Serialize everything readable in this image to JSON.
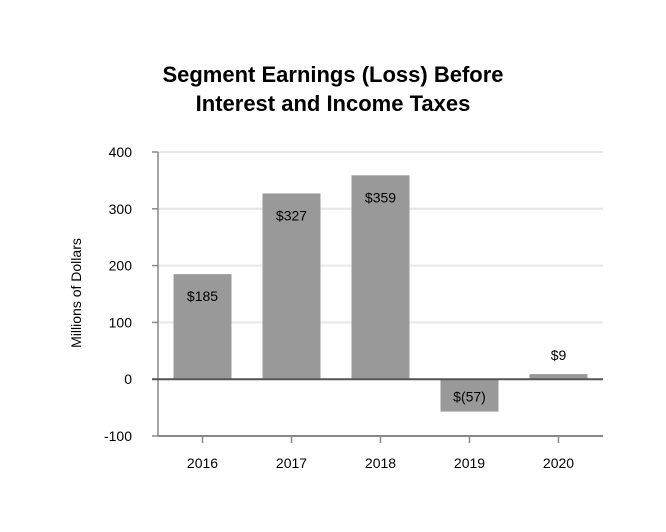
{
  "chart_data": {
    "type": "bar",
    "title_lines": [
      "Segment Earnings (Loss) Before",
      "Interest and Income Taxes"
    ],
    "ylabel": "Millions of Dollars",
    "xlabel": "",
    "categories": [
      "2016",
      "2017",
      "2018",
      "2019",
      "2020"
    ],
    "values": [
      185,
      327,
      359,
      -57,
      9
    ],
    "value_labels": [
      "$185",
      "$327",
      "$359",
      "$(57)",
      "$9"
    ],
    "ylim": [
      -100,
      400
    ],
    "yticks": [
      -100,
      0,
      100,
      200,
      300,
      400
    ],
    "ytick_labels": [
      "-100",
      "0",
      "100",
      "200",
      "300",
      "400"
    ],
    "grid": true,
    "legend": "none",
    "colors": {
      "bar": "#999999",
      "grid": "#e6e6e6",
      "axis": "#888888",
      "zero_line": "#555555"
    }
  }
}
